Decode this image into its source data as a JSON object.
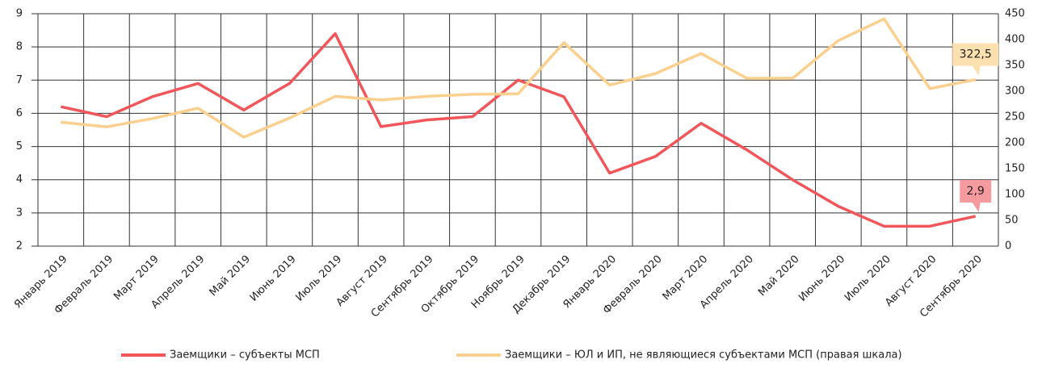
{
  "chart_data": {
    "type": "line",
    "categories": [
      "Январь 2019",
      "Февраль 2019",
      "Март 2019",
      "Апрель 2019",
      "Май  2019",
      "Июнь 2019",
      "Июль 2019",
      "Август 2019",
      "Сентябрь 2019",
      "Октябрь 2019",
      "Ноябрь 2019",
      "Декабрь 2019",
      "Январь 2020",
      "Февраль 2020",
      "Март 2020",
      "Апрель 2020",
      "Май  2020",
      "Июнь 2020",
      "Июль 2020",
      "Август 2020",
      "Сентябрь 2020"
    ],
    "series": [
      {
        "name": "Заемщики – субъекты МСП",
        "color": "#f0565a",
        "axis": "y",
        "values": [
          6.2,
          5.9,
          6.5,
          6.9,
          6.1,
          6.9,
          8.4,
          5.6,
          5.8,
          5.9,
          7.0,
          6.5,
          4.2,
          4.7,
          5.7,
          4.9,
          4.0,
          3.2,
          2.6,
          2.6,
          2.9
        ],
        "value_labels": [
          null,
          null,
          null,
          null,
          null,
          null,
          null,
          null,
          null,
          null,
          null,
          null,
          null,
          null,
          null,
          null,
          null,
          null,
          null,
          null,
          "2,9"
        ]
      },
      {
        "name": "Заемщики – ЮЛ и ИП, не являющиеся субъектами МСП (правая шкала)",
        "color": "#fbd08f",
        "axis": "y2",
        "values": [
          240,
          231,
          247,
          267,
          211,
          248,
          290,
          283,
          290,
          294,
          295,
          394,
          312,
          334,
          373,
          325,
          325,
          398,
          440,
          305,
          322.5
        ],
        "value_labels": [
          null,
          null,
          null,
          null,
          null,
          null,
          null,
          null,
          null,
          null,
          null,
          null,
          null,
          null,
          null,
          null,
          null,
          null,
          null,
          null,
          "322,5"
        ]
      }
    ],
    "ylim": [
      2,
      9
    ],
    "yticks": [
      2,
      3,
      4,
      5,
      6,
      7,
      8,
      9
    ],
    "y2lim": [
      0,
      450
    ],
    "y2ticks": [
      0,
      50,
      100,
      150,
      200,
      250,
      300,
      350,
      400,
      450
    ],
    "grid": true
  }
}
